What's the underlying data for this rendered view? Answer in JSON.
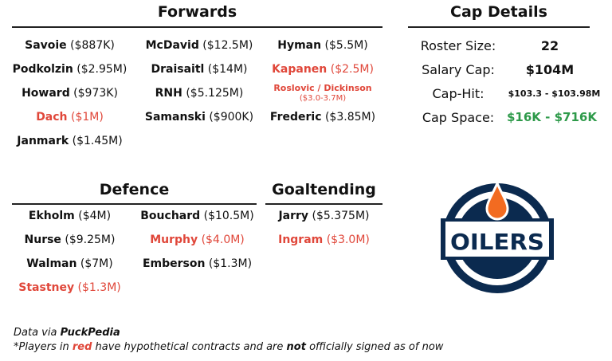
{
  "forwards": {
    "title": "Forwards",
    "col1": [
      {
        "name": "Savoie",
        "cap": " ($887K)"
      },
      {
        "name": "Podkolzin",
        "cap": " ($2.95M)"
      },
      {
        "name": "Howard",
        "cap": " ($973K)"
      },
      {
        "name": "Dach",
        "cap": " ($1M)"
      },
      {
        "name": "Janmark",
        "cap": " ($1.45M)"
      }
    ],
    "col2": [
      {
        "name": "McDavid",
        "cap": " ($12.5M)"
      },
      {
        "name": "Draisaitl",
        "cap": " ($14M)"
      },
      {
        "name": "RNH",
        "cap": " ($5.125M)"
      },
      {
        "name": "Samanski",
        "cap": " ($900K)"
      }
    ],
    "col3": [
      {
        "name": "Hyman",
        "cap": " ($5.5M)"
      },
      {
        "name": "Kapanen",
        "cap": " ($2.5M)"
      },
      {
        "name": "Roslovic / Dickinson",
        "cap": "($3.0-3.7M)"
      },
      {
        "name": "Frederic",
        "cap": " ($3.85M)"
      }
    ]
  },
  "cap_details": {
    "title": "Cap Details",
    "rows": [
      {
        "label": "Roster Size:",
        "value": "22"
      },
      {
        "label": "Salary Cap:",
        "value": "$104M"
      },
      {
        "label": "Cap-Hit:",
        "value": "$103.3 - $103.98M"
      },
      {
        "label": "Cap Space:",
        "value": "$16K - $716K"
      }
    ]
  },
  "defence": {
    "title": "Defence",
    "col1": [
      {
        "name": "Ekholm",
        "cap": " ($4M)"
      },
      {
        "name": "Nurse",
        "cap": " ($9.25M)"
      },
      {
        "name": "Walman",
        "cap": " ($7M)"
      },
      {
        "name": "Stastney",
        "cap": " ($1.3M)"
      }
    ],
    "col2": [
      {
        "name": "Bouchard",
        "cap": " ($10.5M)"
      },
      {
        "name": "Murphy",
        "cap": " ($4.0M)"
      },
      {
        "name": "Emberson",
        "cap": " ($1.3M)"
      }
    ]
  },
  "goaltending": {
    "title": "Goaltending",
    "col1": [
      {
        "name": "Jarry",
        "cap": " ($5.375M)"
      },
      {
        "name": "Ingram",
        "cap": " ($3.0M)"
      }
    ]
  },
  "logo": {
    "text": "OILERS"
  },
  "footer": {
    "line1_prefix": "Data via ",
    "line1_source": "PuckPedia",
    "line2_a": "*Players in ",
    "line2_red": "red",
    "line2_b": " have hypothetical contracts and are ",
    "line2_not": "not",
    "line2_c": " officially signed as of now"
  },
  "colors": {
    "hypothetical_red": "#e0473a",
    "cap_space_green": "#2e9a4a",
    "oilers_navy": "#0b2a4f",
    "oilers_orange": "#f26b21"
  }
}
